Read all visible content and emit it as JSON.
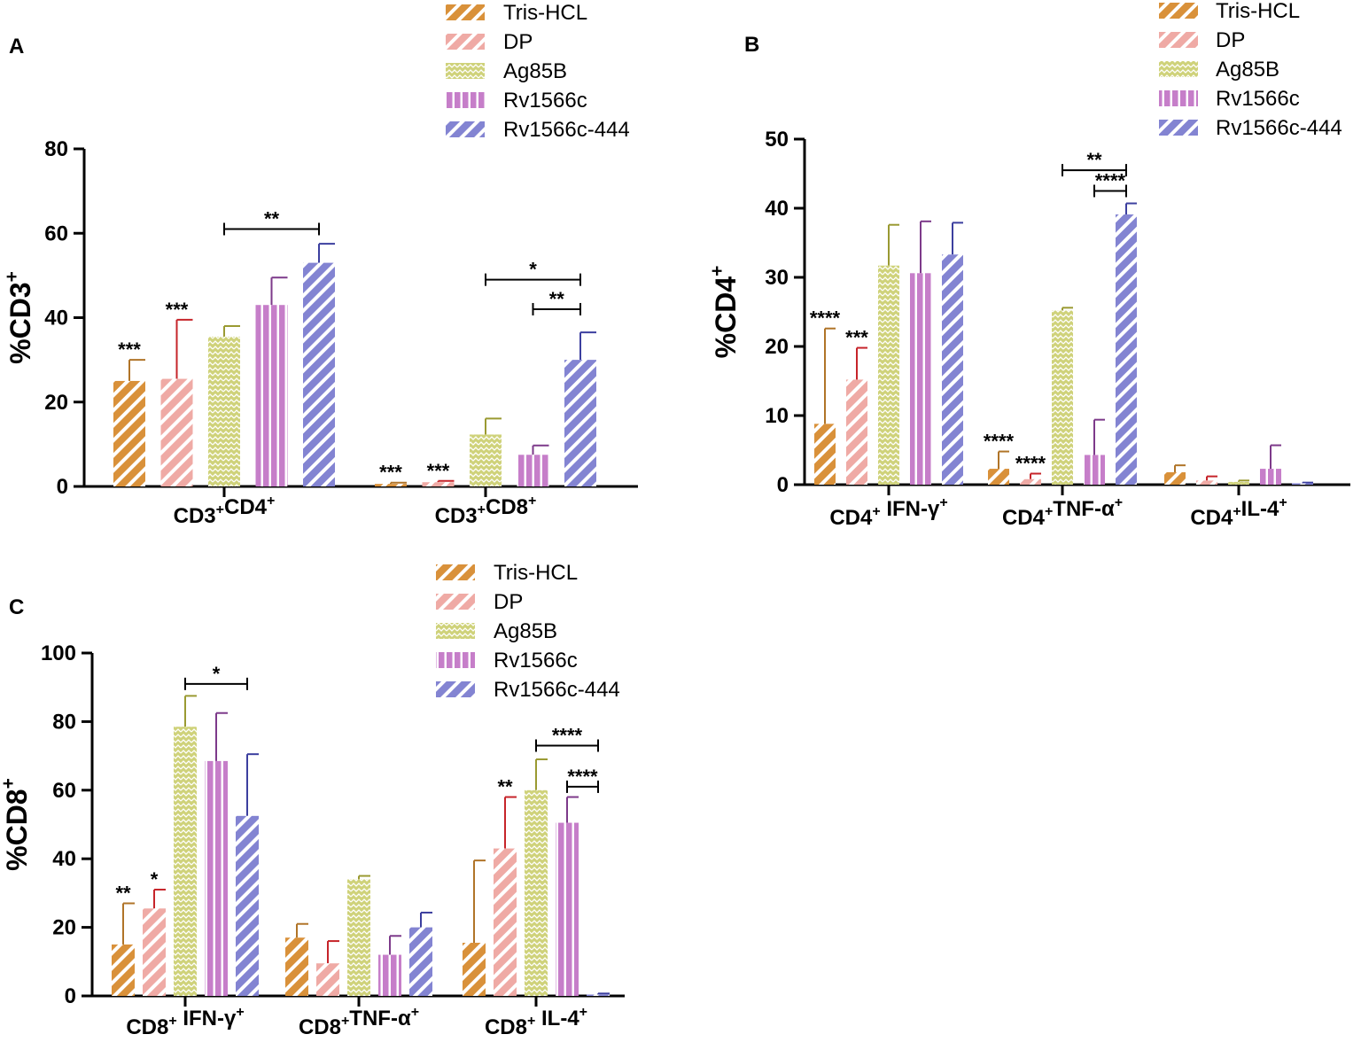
{
  "figure": {
    "series_names": [
      "Tris-HCL",
      "DP",
      "Ag85B",
      "Rv1566c",
      "Rv1566c-444"
    ]
  },
  "series_styles": [
    {
      "name": "Tris-HCL",
      "fill": "#d9913a",
      "err": "#b07428",
      "pattern": "diagonal-stripes"
    },
    {
      "name": "DP",
      "fill": "#efaaa5",
      "err": "#c6242a",
      "pattern": "diagonal-stripes"
    },
    {
      "name": "Ag85B",
      "fill": "#cfd27a",
      "err": "#9a9a32",
      "pattern": "zigzag"
    },
    {
      "name": "Rv1566c",
      "fill": "#c67ec9",
      "err": "#7d3a8a",
      "pattern": "vertical-stripes"
    },
    {
      "name": "Rv1566c-444",
      "fill": "#8384d2",
      "err": "#3c3f9f",
      "pattern": "diagonal-stripes"
    }
  ],
  "chart_data": [
    {
      "panel": "A",
      "type": "bar",
      "ylabel": {
        "main": "%CD3",
        "sup": "+"
      },
      "ylim": [
        0,
        80
      ],
      "yticks": [
        "0",
        "20",
        "40",
        "60",
        "80"
      ],
      "legend_position": "top-right",
      "categories": [
        {
          "parts": [
            [
              "CD3",
              ""
            ],
            [
              "+",
              "sup"
            ],
            [
              "CD4",
              ""
            ],
            [
              "+",
              "sup"
            ]
          ]
        },
        {
          "parts": [
            [
              "CD3",
              ""
            ],
            [
              "+",
              "sup"
            ],
            [
              "CD8",
              ""
            ],
            [
              "+",
              "sup"
            ]
          ]
        }
      ],
      "series": [
        {
          "name": "Tris-HCL",
          "values": [
            25,
            0.6
          ],
          "errors": [
            5,
            0.3
          ],
          "stars": [
            "***",
            "***"
          ]
        },
        {
          "name": "DP",
          "values": [
            25.5,
            1.0
          ],
          "errors": [
            14,
            0.3
          ],
          "stars": [
            "***",
            "***"
          ]
        },
        {
          "name": "Ag85B",
          "values": [
            35.5,
            12.3
          ],
          "errors": [
            2.5,
            3.8
          ],
          "stars": [
            "",
            ""
          ]
        },
        {
          "name": "Rv1566c",
          "values": [
            43,
            7.5
          ],
          "errors": [
            6.5,
            2.2
          ],
          "stars": [
            "",
            ""
          ]
        },
        {
          "name": "Rv1566c-444",
          "values": [
            53,
            30
          ],
          "errors": [
            4.5,
            6.5
          ],
          "stars": [
            "",
            ""
          ]
        }
      ],
      "comparisons": [
        {
          "category": 0,
          "from": "Ag85B",
          "to": "Rv1566c-444",
          "y": 61,
          "label": "**"
        },
        {
          "category": 1,
          "from": "Ag85B",
          "to": "Rv1566c-444",
          "y": 49,
          "label": "*"
        },
        {
          "category": 1,
          "from": "Rv1566c",
          "to": "Rv1566c-444",
          "y": 42,
          "label": "**"
        }
      ]
    },
    {
      "panel": "B",
      "type": "bar",
      "ylabel": {
        "main": "%CD4",
        "sup": "+"
      },
      "ylim": [
        0,
        50
      ],
      "yticks": [
        "0",
        "10",
        "20",
        "30",
        "40",
        "50"
      ],
      "legend_position": "top-right",
      "categories": [
        {
          "parts": [
            [
              "CD4",
              ""
            ],
            [
              "+",
              "sup"
            ],
            [
              " IFN-γ",
              ""
            ],
            [
              "+",
              "sup"
            ]
          ]
        },
        {
          "parts": [
            [
              "CD4",
              ""
            ],
            [
              "+",
              "sup"
            ],
            [
              "TNF-α",
              ""
            ],
            [
              "+",
              "sup"
            ]
          ]
        },
        {
          "parts": [
            [
              "CD4",
              ""
            ],
            [
              "+",
              "sup"
            ],
            [
              "IL-4",
              ""
            ],
            [
              "+",
              "sup"
            ]
          ]
        }
      ],
      "series": [
        {
          "name": "Tris-HCL",
          "values": [
            8.8,
            2.3,
            1.8
          ],
          "errors": [
            13.8,
            2.5,
            1.0
          ],
          "stars": [
            "****",
            "****",
            ""
          ]
        },
        {
          "name": "DP",
          "values": [
            15.2,
            0.8,
            0.6
          ],
          "errors": [
            4.6,
            0.8,
            0.6
          ],
          "stars": [
            "***",
            "****",
            ""
          ]
        },
        {
          "name": "Ag85B",
          "values": [
            31.7,
            25.2,
            0.4
          ],
          "errors": [
            5.9,
            0.4,
            0.2
          ],
          "stars": [
            "",
            "",
            ""
          ]
        },
        {
          "name": "Rv1566c",
          "values": [
            30.6,
            4.3,
            2.3
          ],
          "errors": [
            7.5,
            5.1,
            3.4
          ],
          "stars": [
            "",
            "",
            ""
          ]
        },
        {
          "name": "Rv1566c-444",
          "values": [
            33.3,
            39.1,
            0.2
          ],
          "errors": [
            4.6,
            1.6,
            0.1
          ],
          "stars": [
            "",
            "",
            ""
          ]
        }
      ],
      "comparisons": [
        {
          "category": 1,
          "from": "Ag85B",
          "to": "Rv1566c-444",
          "y": 45.5,
          "label": "**"
        },
        {
          "category": 1,
          "from": "Rv1566c",
          "to": "Rv1566c-444",
          "y": 42.5,
          "label": "****"
        }
      ]
    },
    {
      "panel": "C",
      "type": "bar",
      "ylabel": {
        "main": "%CD8",
        "sup": "+"
      },
      "ylim": [
        0,
        100
      ],
      "yticks": [
        "0",
        "20",
        "40",
        "60",
        "80",
        "100"
      ],
      "legend_position": "top-right",
      "categories": [
        {
          "parts": [
            [
              "CD8",
              ""
            ],
            [
              "+",
              "sup"
            ],
            [
              " IFN-γ",
              ""
            ],
            [
              "+",
              "sup"
            ]
          ]
        },
        {
          "parts": [
            [
              "CD8",
              ""
            ],
            [
              "+",
              "sup"
            ],
            [
              "TNF-α",
              ""
            ],
            [
              "+",
              "sup"
            ]
          ]
        },
        {
          "parts": [
            [
              "CD8",
              ""
            ],
            [
              "+",
              "sup"
            ],
            [
              " IL-4",
              ""
            ],
            [
              "+",
              "sup"
            ]
          ]
        }
      ],
      "series": [
        {
          "name": "Tris-HCL",
          "values": [
            15,
            17,
            15.5
          ],
          "errors": [
            12,
            4,
            24
          ],
          "stars": [
            "**",
            "",
            ""
          ]
        },
        {
          "name": "DP",
          "values": [
            25.5,
            9.5,
            43
          ],
          "errors": [
            5.5,
            6.5,
            15
          ],
          "stars": [
            "*",
            "",
            "**"
          ]
        },
        {
          "name": "Ag85B",
          "values": [
            78.5,
            34,
            60
          ],
          "errors": [
            9,
            1,
            9
          ],
          "stars": [
            "",
            "",
            ""
          ]
        },
        {
          "name": "Rv1566c",
          "values": [
            68.5,
            12,
            50.5
          ],
          "errors": [
            14,
            5.5,
            7.5
          ],
          "stars": [
            "",
            "",
            ""
          ]
        },
        {
          "name": "Rv1566c-444",
          "values": [
            52.5,
            20,
            0.4
          ],
          "errors": [
            18,
            4.3,
            0.3
          ],
          "stars": [
            "",
            "",
            ""
          ]
        }
      ],
      "comparisons": [
        {
          "category": 0,
          "from": "Ag85B",
          "to": "Rv1566c-444",
          "y": 91,
          "label": "*"
        },
        {
          "category": 2,
          "from": "Ag85B",
          "to": "Rv1566c-444",
          "y": 73,
          "label": "****"
        },
        {
          "category": 2,
          "from": "Rv1566c",
          "to": "Rv1566c-444",
          "y": 61,
          "label": "****"
        }
      ]
    }
  ]
}
